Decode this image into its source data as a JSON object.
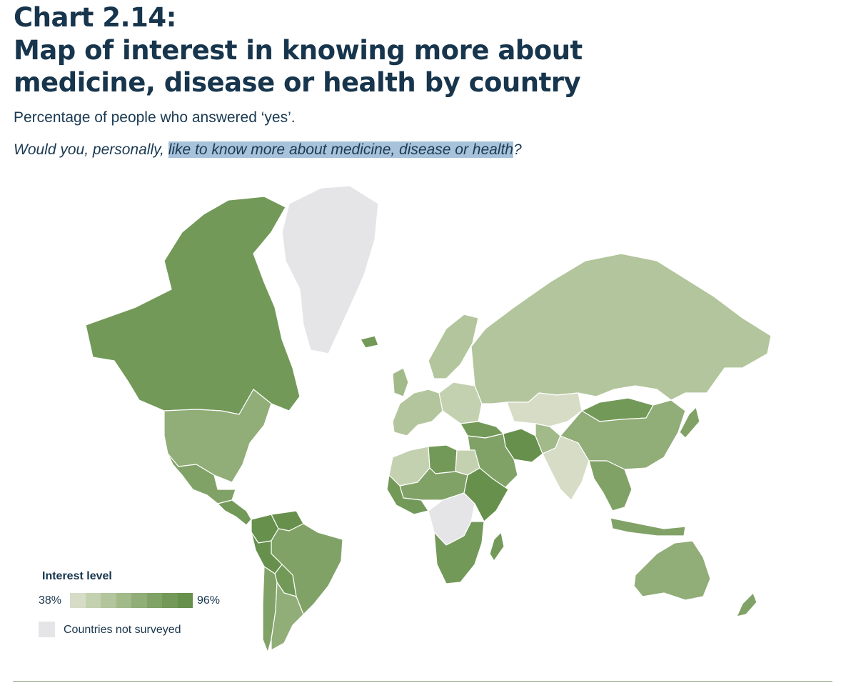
{
  "header": {
    "chart_number": "Chart 2.14:",
    "title": "Map of interest  in knowing more about medicine, disease or health by country",
    "subtitle": "Percentage of people who answered ‘yes’.",
    "question_prefix": "Would you, personally, ",
    "question_highlight": "like to know more about medicine, disease or health",
    "question_suffix": "?"
  },
  "legend": {
    "title": "Interest level",
    "min_label": "38%",
    "max_label": "96%",
    "not_surveyed_label": "Countries not surveyed",
    "ramp_colors": [
      "#d6dcc6",
      "#c4d1b0",
      "#b3c59c",
      "#a2b98a",
      "#91ad78",
      "#81a267",
      "#739959",
      "#67904c"
    ],
    "not_surveyed_color": "#e5e5e8"
  },
  "colors": {
    "title_text": "#17354c",
    "highlight": "#a8c2dc",
    "rule": "#8c9a7a"
  },
  "regions": [
    {
      "name": "Canada",
      "shade": 6
    },
    {
      "name": "United States",
      "shade": 4
    },
    {
      "name": "Mexico",
      "shade": 5
    },
    {
      "name": "Central America",
      "shade": 6
    },
    {
      "name": "Colombia",
      "shade": 7
    },
    {
      "name": "Venezuela",
      "shade": 7
    },
    {
      "name": "Brazil",
      "shade": 5
    },
    {
      "name": "Peru",
      "shade": 7
    },
    {
      "name": "Bolivia",
      "shade": 6
    },
    {
      "name": "Chile",
      "shade": 5
    },
    {
      "name": "Argentina",
      "shade": 4
    },
    {
      "name": "Greenland",
      "shade": -1
    },
    {
      "name": "Iceland",
      "shade": 6
    },
    {
      "name": "United Kingdom",
      "shade": 3
    },
    {
      "name": "Scandinavia",
      "shade": 2
    },
    {
      "name": "Western Europe",
      "shade": 2
    },
    {
      "name": "Eastern Europe",
      "shade": 1
    },
    {
      "name": "Russia",
      "shade": 2
    },
    {
      "name": "Kazakhstan",
      "shade": 0
    },
    {
      "name": "Turkey",
      "shade": 6
    },
    {
      "name": "Iran",
      "shade": 7
    },
    {
      "name": "Middle East",
      "shade": 5
    },
    {
      "name": "Afghanistan",
      "shade": 3
    },
    {
      "name": "India",
      "shade": 0
    },
    {
      "name": "China",
      "shade": 4
    },
    {
      "name": "Mongolia",
      "shade": 6
    },
    {
      "name": "Japan",
      "shade": 5
    },
    {
      "name": "Southeast Asia",
      "shade": 5
    },
    {
      "name": "Indonesia",
      "shade": 5
    },
    {
      "name": "Australia",
      "shade": 4
    },
    {
      "name": "New Zealand",
      "shade": 5
    },
    {
      "name": "North Africa West",
      "shade": 1
    },
    {
      "name": "Egypt",
      "shade": 1
    },
    {
      "name": "Libya",
      "shade": 6
    },
    {
      "name": "Sahel",
      "shade": 5
    },
    {
      "name": "West Africa",
      "shade": 6
    },
    {
      "name": "Central Africa",
      "shade": -1
    },
    {
      "name": "East Africa",
      "shade": 7
    },
    {
      "name": "Southern Africa",
      "shade": 6
    },
    {
      "name": "Madagascar",
      "shade": 6
    }
  ]
}
